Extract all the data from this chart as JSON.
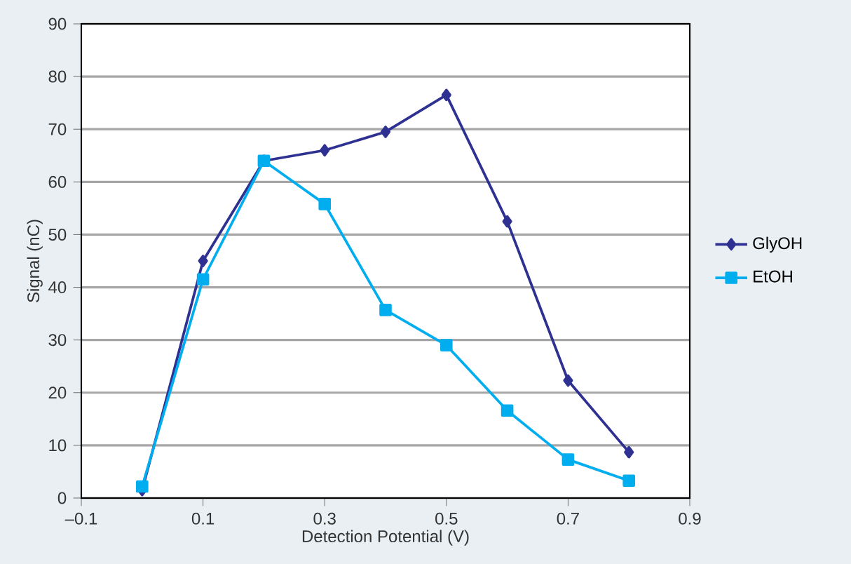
{
  "chart_data": {
    "type": "line",
    "xlabel": "Detection Potential (V)",
    "ylabel": "Signal (nC)",
    "x": [
      0,
      0.1,
      0.2,
      0.3,
      0.4,
      0.5,
      0.6,
      0.7,
      0.8
    ],
    "series": [
      {
        "name": "GlyOH",
        "color": "#2e3192",
        "marker": "diamond",
        "values": [
          1.5,
          45,
          64,
          66,
          69.5,
          76.5,
          52.5,
          22.3,
          8.7
        ]
      },
      {
        "name": "EtOH",
        "color": "#00aeef",
        "marker": "square",
        "values": [
          2.2,
          41.5,
          64,
          55.8,
          35.7,
          29,
          16.6,
          7.3,
          3.3
        ]
      }
    ],
    "xlim": [
      -0.1,
      0.9
    ],
    "xticks": [
      {
        "value": -0.1,
        "label": "–0.1"
      },
      0.1,
      0.3,
      0.5,
      0.7,
      0.9
    ],
    "ylim": [
      0,
      90
    ],
    "yticks": [
      0,
      10,
      20,
      30,
      40,
      50,
      60,
      70,
      80,
      90
    ],
    "grid": "y",
    "legend": "right",
    "line_style": "solid"
  }
}
